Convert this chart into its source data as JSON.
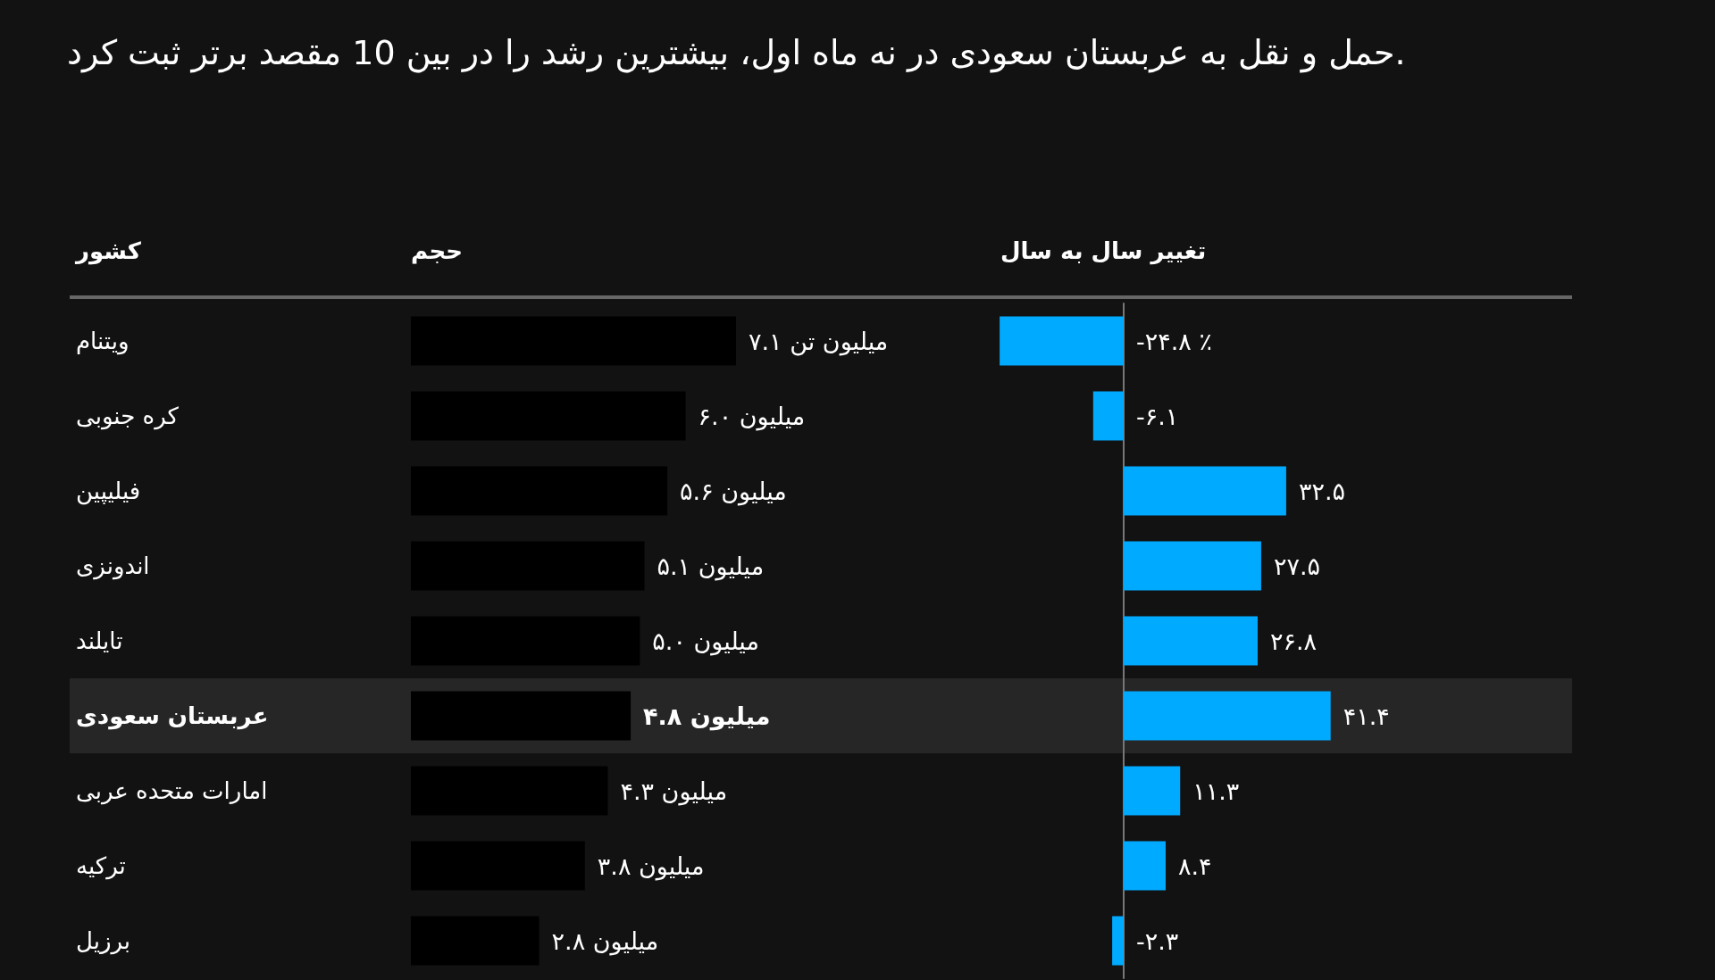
{
  "chart_data": [
    {
      "type": "bar",
      "orientation": "horizontal",
      "title": "حمل و نقل به عربستان سعودی در نه ماه اول، بیشترین رشد را در بین 10 مقصد برتر ثبت کرد.",
      "ylabel": "کشور",
      "xlabel": "حجم",
      "categories": [
        "ویتنام",
        "کره جنوبی",
        "فیلیپین",
        "اندونزی",
        "تایلند",
        "عربستان سعودی",
        "امارات متحده عربی",
        "ترکیه",
        "برزیل"
      ],
      "values": [
        7.1,
        6.0,
        5.6,
        5.1,
        5.0,
        4.8,
        4.3,
        3.8,
        2.8
      ],
      "color": "#000000",
      "value_labels": [
        "۷.۱ میلیون تن",
        "۶.۰ میلیون",
        "۵.۶ میلیون",
        "۵.۱ میلیون",
        "۵.۰ میلیون",
        "۴.۸ میلیون",
        "۴.۳ میلیون",
        "۳.۸ میلیون",
        "۲.۸ میلیون"
      ],
      "tick_labels": "y",
      "bands": [
        {
          "axis": "y",
          "from": "عربستان سعودی",
          "to": "عربستان سعودی",
          "color": "#262626"
        }
      ]
    },
    {
      "type": "bar",
      "orientation": "horizontal",
      "xlabel": "تغییر سال به سال",
      "categories": [
        null,
        null,
        null,
        null,
        null,
        null,
        null,
        null,
        null
      ],
      "values": [
        -24.8,
        -6.1,
        32.5,
        27.5,
        26.8,
        41.4,
        11.3,
        8.4,
        -2.3
      ],
      "color": "#00aaff",
      "value_labels": [
        "-۲۴.۸ ٪",
        "-۶.۱",
        "۳۲.۵",
        "۲۷.۵",
        "۲۶.۸",
        "۴۱.۴",
        "۱۱.۳",
        "۸.۴",
        "-۲.۳"
      ],
      "tick_labels": false
    }
  ]
}
